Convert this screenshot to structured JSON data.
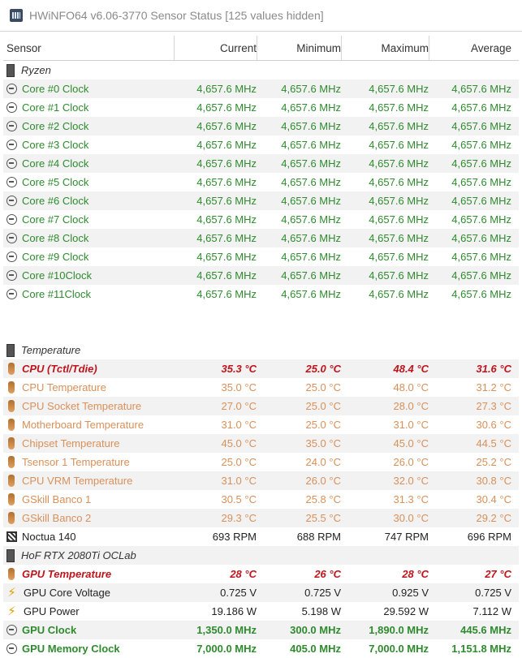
{
  "window": {
    "title": "HWiNFO64 v6.06-3770 Sensor Status [125 values hidden]"
  },
  "columns": {
    "sensor": "Sensor",
    "current": "Current",
    "minimum": "Minimum",
    "maximum": "Maximum",
    "average": "Average"
  },
  "groups": {
    "ryzen": "Ryzen",
    "temperature": "Temperature",
    "gpu": "HoF RTX 2080Ti OCLab"
  },
  "cores": [
    {
      "name": "Core #0 Clock",
      "cur": "4,657.6 MHz",
      "min": "4,657.6 MHz",
      "max": "4,657.6 MHz",
      "avg": "4,657.6 MHz"
    },
    {
      "name": "Core #1 Clock",
      "cur": "4,657.6 MHz",
      "min": "4,657.6 MHz",
      "max": "4,657.6 MHz",
      "avg": "4,657.6 MHz"
    },
    {
      "name": "Core #2 Clock",
      "cur": "4,657.6 MHz",
      "min": "4,657.6 MHz",
      "max": "4,657.6 MHz",
      "avg": "4,657.6 MHz"
    },
    {
      "name": "Core #3 Clock",
      "cur": "4,657.6 MHz",
      "min": "4,657.6 MHz",
      "max": "4,657.6 MHz",
      "avg": "4,657.6 MHz"
    },
    {
      "name": "Core #4 Clock",
      "cur": "4,657.6 MHz",
      "min": "4,657.6 MHz",
      "max": "4,657.6 MHz",
      "avg": "4,657.6 MHz"
    },
    {
      "name": "Core #5 Clock",
      "cur": "4,657.6 MHz",
      "min": "4,657.6 MHz",
      "max": "4,657.6 MHz",
      "avg": "4,657.6 MHz"
    },
    {
      "name": "Core #6 Clock",
      "cur": "4,657.6 MHz",
      "min": "4,657.6 MHz",
      "max": "4,657.6 MHz",
      "avg": "4,657.6 MHz"
    },
    {
      "name": "Core #7 Clock",
      "cur": "4,657.6 MHz",
      "min": "4,657.6 MHz",
      "max": "4,657.6 MHz",
      "avg": "4,657.6 MHz"
    },
    {
      "name": "Core #8 Clock",
      "cur": "4,657.6 MHz",
      "min": "4,657.6 MHz",
      "max": "4,657.6 MHz",
      "avg": "4,657.6 MHz"
    },
    {
      "name": "Core #9 Clock",
      "cur": "4,657.6 MHz",
      "min": "4,657.6 MHz",
      "max": "4,657.6 MHz",
      "avg": "4,657.6 MHz"
    },
    {
      "name": "Core #10Clock",
      "cur": "4,657.6 MHz",
      "min": "4,657.6 MHz",
      "max": "4,657.6 MHz",
      "avg": "4,657.6 MHz"
    },
    {
      "name": "Core #11Clock",
      "cur": "4,657.6 MHz",
      "min": "4,657.6 MHz",
      "max": "4,657.6 MHz",
      "avg": "4,657.6 MHz"
    }
  ],
  "temps": [
    {
      "name": "CPU (Tctl/Tdie)",
      "cur": "35.3 °C",
      "min": "25.0 °C",
      "max": "48.4 °C",
      "avg": "31.6 °C",
      "style": "red"
    },
    {
      "name": "CPU Temperature",
      "cur": "35.0 °C",
      "min": "25.0 °C",
      "max": "48.0 °C",
      "avg": "31.2 °C",
      "style": "orange"
    },
    {
      "name": "CPU Socket Temperature",
      "cur": "27.0 °C",
      "min": "25.0 °C",
      "max": "28.0 °C",
      "avg": "27.3 °C",
      "style": "orange"
    },
    {
      "name": "Motherboard Temperature",
      "cur": "31.0 °C",
      "min": "25.0 °C",
      "max": "31.0 °C",
      "avg": "30.6 °C",
      "style": "orange"
    },
    {
      "name": "Chipset Temperature",
      "cur": "45.0 °C",
      "min": "35.0 °C",
      "max": "45.0 °C",
      "avg": "44.5 °C",
      "style": "orange"
    },
    {
      "name": "Tsensor 1 Temperature",
      "cur": "25.0 °C",
      "min": "24.0 °C",
      "max": "26.0 °C",
      "avg": "25.2 °C",
      "style": "orange"
    },
    {
      "name": "CPU VRM Temperature",
      "cur": "31.0 °C",
      "min": "26.0 °C",
      "max": "32.0 °C",
      "avg": "30.8 °C",
      "style": "orange"
    },
    {
      "name": "GSkill Banco 1",
      "cur": "30.5 °C",
      "min": "25.8 °C",
      "max": "31.3 °C",
      "avg": "30.4 °C",
      "style": "orange"
    },
    {
      "name": "GSkill Banco 2",
      "cur": "29.3 °C",
      "min": "25.5 °C",
      "max": "30.0 °C",
      "avg": "29.2 °C",
      "style": "orange"
    }
  ],
  "fan": {
    "name": "Noctua 140",
    "cur": "693 RPM",
    "min": "688 RPM",
    "max": "747 RPM",
    "avg": "696 RPM"
  },
  "gpu_rows": [
    {
      "name": "GPU Temperature",
      "cur": "28 °C",
      "min": "26 °C",
      "max": "28 °C",
      "avg": "27 °C",
      "style": "red",
      "icon": "therm"
    },
    {
      "name": "GPU Core Voltage",
      "cur": "0.725 V",
      "min": "0.725 V",
      "max": "0.925 V",
      "avg": "0.725 V",
      "style": "dark",
      "icon": "bolt"
    },
    {
      "name": "GPU Power",
      "cur": "19.186 W",
      "min": "5.198 W",
      "max": "29.592 W",
      "avg": "7.112 W",
      "style": "dark",
      "icon": "bolt"
    },
    {
      "name": "GPU Clock",
      "cur": "1,350.0 MHz",
      "min": "300.0 MHz",
      "max": "1,890.0 MHz",
      "avg": "445.6 MHz",
      "style": "bold-green",
      "icon": "clock"
    },
    {
      "name": "GPU Memory Clock",
      "cur": "7,000.0 MHz",
      "min": "405.0 MHz",
      "max": "7,000.0 MHz",
      "avg": "1,151.8 MHz",
      "style": "bold-green",
      "icon": "clock"
    }
  ]
}
